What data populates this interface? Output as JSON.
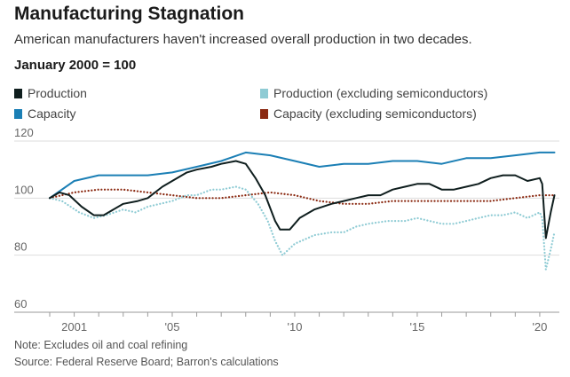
{
  "chart_data": {
    "type": "line",
    "title": "Manufacturing Stagnation",
    "subtitle": "American manufacturers haven't increased overall production in two decades.",
    "ylabel": "January 2000 = 100",
    "ylim": [
      60,
      120
    ],
    "xlim": [
      2000,
      2020.8
    ],
    "yticks": [
      60,
      80,
      100,
      120
    ],
    "xticks": [
      {
        "value": 2001,
        "label": "2001"
      },
      {
        "value": 2005,
        "label": "'05"
      },
      {
        "value": 2010,
        "label": "'10"
      },
      {
        "value": 2015,
        "label": "'15"
      },
      {
        "value": 2020,
        "label": "'20"
      }
    ],
    "grid": "horizontal",
    "legend_position": "top",
    "series": [
      {
        "name": "Production",
        "color": "#0f1e1e",
        "style": "solid",
        "x": [
          2000,
          2000.4,
          2000.8,
          2001.3,
          2001.8,
          2002.2,
          2003.0,
          2003.6,
          2004.0,
          2004.6,
          2005.0,
          2005.6,
          2006.0,
          2006.6,
          2007.0,
          2007.6,
          2008.0,
          2008.4,
          2008.8,
          2009.2,
          2009.4,
          2009.8,
          2010.2,
          2010.8,
          2011.5,
          2012.0,
          2012.5,
          2013.0,
          2013.5,
          2014.0,
          2014.5,
          2015.0,
          2015.5,
          2016.0,
          2016.5,
          2017.0,
          2017.5,
          2018.0,
          2018.5,
          2019.0,
          2019.5,
          2020.0,
          2020.1,
          2020.25,
          2020.45,
          2020.6
        ],
        "values": [
          100,
          102,
          101,
          97,
          94,
          94,
          98,
          99,
          100,
          104,
          106,
          109,
          110,
          111,
          112,
          113,
          112,
          107,
          101,
          92,
          89,
          89,
          93,
          96,
          98,
          99,
          100,
          101,
          101,
          103,
          104,
          105,
          105,
          103,
          103,
          104,
          105,
          107,
          108,
          108,
          106,
          107,
          105,
          86,
          95,
          101
        ]
      },
      {
        "name": "Capacity",
        "color": "#1b7fb5",
        "style": "solid",
        "x": [
          2000,
          2001,
          2002,
          2003,
          2004,
          2005,
          2006,
          2007,
          2008,
          2009,
          2010,
          2011,
          2012,
          2013,
          2014,
          2015,
          2016,
          2017,
          2018,
          2019,
          2020,
          2020.6
        ],
        "values": [
          100,
          106,
          108,
          108,
          108,
          109,
          111,
          113,
          116,
          115,
          113,
          111,
          112,
          112,
          113,
          113,
          112,
          114,
          114,
          115,
          116,
          116
        ]
      },
      {
        "name": "Production (excluding semiconductors)",
        "color": "#8ecbd4",
        "style": "dotted",
        "x": [
          2000,
          2000.5,
          2001.2,
          2001.8,
          2002.3,
          2003.0,
          2003.5,
          2004.0,
          2005.0,
          2005.6,
          2006.0,
          2006.6,
          2007.0,
          2007.6,
          2008.0,
          2008.5,
          2008.9,
          2009.2,
          2009.5,
          2010.0,
          2010.8,
          2011.5,
          2012.0,
          2012.5,
          2013.0,
          2013.8,
          2014.5,
          2015.0,
          2016.0,
          2016.5,
          2017.0,
          2017.5,
          2018.0,
          2018.5,
          2019.0,
          2019.5,
          2020.0,
          2020.1,
          2020.25,
          2020.45,
          2020.6
        ],
        "values": [
          100,
          99,
          95,
          93,
          94,
          96,
          95,
          97,
          99,
          101,
          101,
          103,
          103,
          104,
          103,
          98,
          92,
          85,
          80,
          84,
          87,
          88,
          88,
          90,
          91,
          92,
          92,
          93,
          91,
          91,
          92,
          93,
          94,
          94,
          95,
          93,
          95,
          93,
          75,
          82,
          88
        ]
      },
      {
        "name": "Capacity (excluding semiconductors)",
        "color": "#8b2a12",
        "style": "dotted",
        "x": [
          2000,
          2001,
          2002,
          2003,
          2004,
          2005,
          2006,
          2007,
          2008,
          2009,
          2010,
          2011,
          2012,
          2013,
          2014,
          2015,
          2016,
          2017,
          2018,
          2019,
          2020,
          2020.6
        ],
        "values": [
          100,
          102,
          103,
          103,
          102,
          101,
          100,
          100,
          101,
          102,
          101,
          99,
          98,
          98,
          99,
          99,
          99,
          99,
          99,
          100,
          101,
          101
        ]
      }
    ]
  },
  "footer": {
    "note": "Note: Excludes oil and coal refining",
    "source": "Source: Federal Reserve Board; Barron's calculations"
  }
}
